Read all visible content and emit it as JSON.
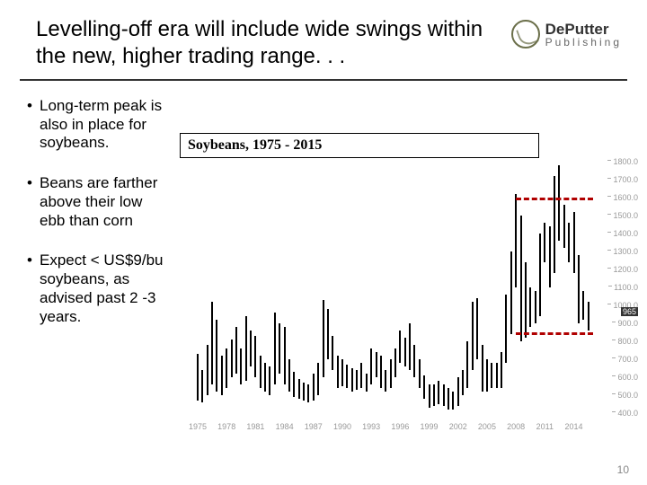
{
  "header": {
    "title": "Levelling-off era will include wide swings within the new, higher trading range. . ."
  },
  "logo": {
    "line1": "DePutter",
    "line2": "Publishing"
  },
  "bullets": [
    "Long-term peak is also in place for soybeans.",
    "Beans are farther above their low ebb than corn",
    "Expect < US$9/bu soybeans, as advised past 2 -3 years."
  ],
  "chart": {
    "title": "Soybeans, 1975 - 2015",
    "type": "ohlc-like-range-bars",
    "x": {
      "min": 1975,
      "max": 2016,
      "ticks": [
        1975,
        1978,
        1981,
        1984,
        1987,
        1990,
        1993,
        1996,
        1999,
        2002,
        2005,
        2008,
        2011,
        2014
      ]
    },
    "y": {
      "min": 400,
      "max": 1800,
      "tick_step": 100,
      "ticks": [
        1800,
        1700,
        1600,
        1500,
        1400,
        1300,
        1200,
        1100,
        1000,
        900,
        800,
        700,
        600,
        500,
        400
      ],
      "current_marker": 965
    },
    "colors": {
      "bar": "#000000",
      "tick_text": "#999999",
      "dash": "#b00000",
      "chart_bg": "#ffffff"
    },
    "dash_lines": [
      {
        "y": 1600,
        "x_from": 2008,
        "x_to": 2016
      },
      {
        "y": 850,
        "x_from": 2008,
        "x_to": 2016
      }
    ],
    "series": [
      {
        "x": 1975.0,
        "lo": 470,
        "hi": 730
      },
      {
        "x": 1975.5,
        "lo": 460,
        "hi": 640
      },
      {
        "x": 1976.0,
        "lo": 500,
        "hi": 780
      },
      {
        "x": 1976.5,
        "lo": 560,
        "hi": 1020
      },
      {
        "x": 1977.0,
        "lo": 520,
        "hi": 920
      },
      {
        "x": 1977.5,
        "lo": 500,
        "hi": 720
      },
      {
        "x": 1978.0,
        "lo": 540,
        "hi": 760
      },
      {
        "x": 1978.5,
        "lo": 600,
        "hi": 810
      },
      {
        "x": 1979.0,
        "lo": 620,
        "hi": 880
      },
      {
        "x": 1979.5,
        "lo": 560,
        "hi": 760
      },
      {
        "x": 1980.0,
        "lo": 580,
        "hi": 940
      },
      {
        "x": 1980.5,
        "lo": 660,
        "hi": 860
      },
      {
        "x": 1981.0,
        "lo": 600,
        "hi": 830
      },
      {
        "x": 1981.5,
        "lo": 540,
        "hi": 720
      },
      {
        "x": 1982.0,
        "lo": 520,
        "hi": 680
      },
      {
        "x": 1982.5,
        "lo": 500,
        "hi": 660
      },
      {
        "x": 1983.0,
        "lo": 560,
        "hi": 960
      },
      {
        "x": 1983.5,
        "lo": 620,
        "hi": 900
      },
      {
        "x": 1984.0,
        "lo": 560,
        "hi": 880
      },
      {
        "x": 1984.5,
        "lo": 520,
        "hi": 700
      },
      {
        "x": 1985.0,
        "lo": 490,
        "hi": 630
      },
      {
        "x": 1985.5,
        "lo": 480,
        "hi": 590
      },
      {
        "x": 1986.0,
        "lo": 470,
        "hi": 570
      },
      {
        "x": 1986.5,
        "lo": 460,
        "hi": 560
      },
      {
        "x": 1987.0,
        "lo": 470,
        "hi": 620
      },
      {
        "x": 1987.5,
        "lo": 500,
        "hi": 680
      },
      {
        "x": 1988.0,
        "lo": 600,
        "hi": 1030
      },
      {
        "x": 1988.5,
        "lo": 700,
        "hi": 980
      },
      {
        "x": 1989.0,
        "lo": 640,
        "hi": 830
      },
      {
        "x": 1989.5,
        "lo": 540,
        "hi": 720
      },
      {
        "x": 1990.0,
        "lo": 550,
        "hi": 700
      },
      {
        "x": 1990.5,
        "lo": 540,
        "hi": 670
      },
      {
        "x": 1991.0,
        "lo": 520,
        "hi": 650
      },
      {
        "x": 1991.5,
        "lo": 530,
        "hi": 640
      },
      {
        "x": 1992.0,
        "lo": 540,
        "hi": 680
      },
      {
        "x": 1992.5,
        "lo": 520,
        "hi": 620
      },
      {
        "x": 1993.0,
        "lo": 560,
        "hi": 760
      },
      {
        "x": 1993.5,
        "lo": 600,
        "hi": 740
      },
      {
        "x": 1994.0,
        "lo": 540,
        "hi": 720
      },
      {
        "x": 1994.5,
        "lo": 520,
        "hi": 640
      },
      {
        "x": 1995.0,
        "lo": 540,
        "hi": 700
      },
      {
        "x": 1995.5,
        "lo": 600,
        "hi": 760
      },
      {
        "x": 1996.0,
        "lo": 680,
        "hi": 860
      },
      {
        "x": 1996.5,
        "lo": 660,
        "hi": 820
      },
      {
        "x": 1997.0,
        "lo": 640,
        "hi": 900
      },
      {
        "x": 1997.5,
        "lo": 600,
        "hi": 780
      },
      {
        "x": 1998.0,
        "lo": 540,
        "hi": 700
      },
      {
        "x": 1998.5,
        "lo": 480,
        "hi": 610
      },
      {
        "x": 1999.0,
        "lo": 430,
        "hi": 560
      },
      {
        "x": 1999.5,
        "lo": 440,
        "hi": 560
      },
      {
        "x": 2000.0,
        "lo": 450,
        "hi": 580
      },
      {
        "x": 2000.5,
        "lo": 440,
        "hi": 560
      },
      {
        "x": 2001.0,
        "lo": 420,
        "hi": 540
      },
      {
        "x": 2001.5,
        "lo": 420,
        "hi": 520
      },
      {
        "x": 2002.0,
        "lo": 440,
        "hi": 600
      },
      {
        "x": 2002.5,
        "lo": 500,
        "hi": 640
      },
      {
        "x": 2003.0,
        "lo": 540,
        "hi": 800
      },
      {
        "x": 2003.5,
        "lo": 640,
        "hi": 1020
      },
      {
        "x": 2004.0,
        "lo": 700,
        "hi": 1040
      },
      {
        "x": 2004.5,
        "lo": 520,
        "hi": 780
      },
      {
        "x": 2005.0,
        "lo": 520,
        "hi": 700
      },
      {
        "x": 2005.5,
        "lo": 540,
        "hi": 680
      },
      {
        "x": 2006.0,
        "lo": 540,
        "hi": 680
      },
      {
        "x": 2006.5,
        "lo": 540,
        "hi": 740
      },
      {
        "x": 2007.0,
        "lo": 680,
        "hi": 1060
      },
      {
        "x": 2007.5,
        "lo": 840,
        "hi": 1300
      },
      {
        "x": 2008.0,
        "lo": 1100,
        "hi": 1620
      },
      {
        "x": 2008.5,
        "lo": 800,
        "hi": 1500
      },
      {
        "x": 2009.0,
        "lo": 820,
        "hi": 1240
      },
      {
        "x": 2009.5,
        "lo": 880,
        "hi": 1100
      },
      {
        "x": 2010.0,
        "lo": 900,
        "hi": 1080
      },
      {
        "x": 2010.5,
        "lo": 940,
        "hi": 1400
      },
      {
        "x": 2011.0,
        "lo": 1240,
        "hi": 1460
      },
      {
        "x": 2011.5,
        "lo": 1100,
        "hi": 1440
      },
      {
        "x": 2012.0,
        "lo": 1180,
        "hi": 1720
      },
      {
        "x": 2012.5,
        "lo": 1360,
        "hi": 1780
      },
      {
        "x": 2013.0,
        "lo": 1320,
        "hi": 1560
      },
      {
        "x": 2013.5,
        "lo": 1240,
        "hi": 1460
      },
      {
        "x": 2014.0,
        "lo": 1180,
        "hi": 1520
      },
      {
        "x": 2014.5,
        "lo": 900,
        "hi": 1280
      },
      {
        "x": 2015.0,
        "lo": 920,
        "hi": 1080
      },
      {
        "x": 2015.5,
        "lo": 860,
        "hi": 1020
      }
    ]
  },
  "page_number": "10"
}
